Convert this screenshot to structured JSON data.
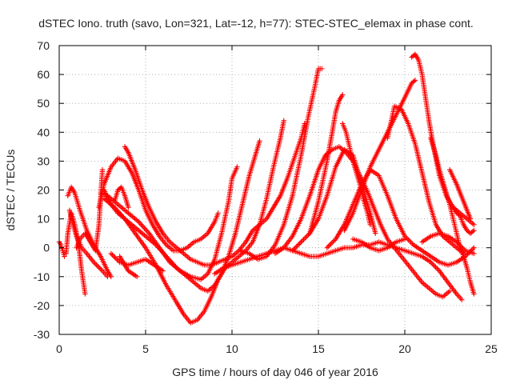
{
  "chart_data": {
    "type": "scatter",
    "title": "dSTEC Iono. truth (savo, Lon=321, Lat=-12, h=77): STEC-STEC_elemax in phase cont.",
    "xlabel": "GPS time / hours of day 046 of year 2016",
    "ylabel": "dSTEC  / TECUs",
    "xlim": [
      0,
      25
    ],
    "ylim": [
      -30,
      70
    ],
    "xticks": [
      0,
      5,
      10,
      15,
      20,
      25
    ],
    "yticks": [
      -30,
      -20,
      -10,
      0,
      10,
      20,
      30,
      40,
      50,
      60,
      70
    ],
    "grid": true,
    "marker": "+",
    "color": "#ff0000",
    "series": [
      {
        "x": [
          0.0,
          0.1,
          0.2,
          0.3
        ],
        "y": [
          2,
          1,
          -1,
          -3
        ]
      },
      {
        "x": [
          0.4,
          0.5,
          0.7,
          0.9,
          1.1,
          1.3,
          1.5
        ],
        "y": [
          -2,
          5,
          12,
          8,
          2,
          -8,
          -16
        ]
      },
      {
        "x": [
          0.5,
          0.7,
          0.9,
          1.2,
          1.6,
          2.0,
          2.4,
          2.8,
          3.0
        ],
        "y": [
          18,
          21,
          19,
          13,
          6,
          1,
          -3,
          -8,
          -10
        ]
      },
      {
        "x": [
          0.6,
          0.8,
          1.0,
          1.3,
          1.6,
          2.0,
          2.5,
          2.8
        ],
        "y": [
          13,
          8,
          4,
          0,
          -2,
          -5,
          -8,
          -10
        ]
      },
      {
        "x": [
          1.0,
          1.2,
          1.5,
          1.8,
          2.1,
          2.3,
          2.5
        ],
        "y": [
          0,
          3,
          5,
          2,
          -1,
          8,
          27
        ]
      },
      {
        "x": [
          2.3,
          2.6,
          3.0,
          3.4,
          3.8,
          4.2,
          4.6,
          5.0,
          5.4,
          5.8,
          6.2,
          6.6,
          7.0,
          7.4,
          7.8,
          8.2,
          8.6,
          9.0,
          9.2
        ],
        "y": [
          14,
          22,
          28,
          31,
          30,
          26,
          20,
          13,
          8,
          4,
          1,
          -1,
          -1,
          0,
          2,
          3,
          5,
          9,
          12
        ]
      },
      {
        "x": [
          2.4,
          2.8,
          3.2,
          3.6,
          4.0,
          4.6,
          5.2,
          5.8,
          6.4,
          7.0,
          7.6,
          8.2,
          8.6,
          9.0,
          9.4,
          9.8,
          10.0,
          10.3
        ],
        "y": [
          19,
          18,
          16,
          14,
          12,
          9,
          5,
          0,
          -5,
          -8,
          -10,
          -11,
          -9,
          -4,
          5,
          16,
          24,
          28
        ]
      },
      {
        "x": [
          2.6,
          3.0,
          3.4,
          3.8,
          4.4,
          5.0,
          5.6,
          6.2,
          6.8,
          7.4,
          7.8,
          8.2,
          8.6,
          9.0,
          9.4,
          9.8,
          10.2,
          10.6,
          11.0,
          11.4,
          11.6
        ],
        "y": [
          20,
          15,
          12,
          10,
          7,
          4,
          1,
          -3,
          -7,
          -10,
          -12,
          -14,
          -15,
          -13,
          -9,
          -3,
          5,
          15,
          25,
          33,
          37
        ]
      },
      {
        "x": [
          2.6,
          3.2,
          3.8,
          4.4,
          5.0,
          5.6,
          6.2,
          6.8,
          7.2,
          7.6,
          8.0,
          8.4,
          8.8,
          9.2,
          9.6,
          10.0,
          10.4,
          10.8,
          11.2,
          11.6,
          12.0,
          12.4,
          12.8,
          13.0
        ],
        "y": [
          17,
          14,
          10,
          5,
          0,
          -6,
          -13,
          -19,
          -23,
          -26,
          -25,
          -22,
          -17,
          -11,
          -7,
          -5,
          -3,
          -1,
          2,
          8,
          17,
          28,
          38,
          44
        ]
      },
      {
        "x": [
          3.8,
          4.0,
          4.4,
          4.8,
          5.2,
          5.6,
          6.0,
          6.4,
          6.8,
          7.2,
          7.6,
          8.0,
          8.4,
          8.8,
          9.2,
          9.6,
          10.0,
          10.4,
          10.8,
          11.2,
          11.6,
          12.0,
          12.4,
          12.8,
          13.2,
          13.6,
          14.0,
          14.2
        ],
        "y": [
          35,
          33,
          27,
          20,
          14,
          9,
          5,
          2,
          0,
          -2,
          -4,
          -5,
          -6,
          -6,
          -5,
          -4,
          -3,
          -1,
          2,
          6,
          8,
          10,
          14,
          18,
          24,
          31,
          38,
          43
        ]
      },
      {
        "x": [
          3.0,
          3.5,
          4.0,
          4.5,
          5.0,
          5.5,
          6.0
        ],
        "y": [
          -2,
          -5,
          -6,
          -5,
          -4,
          -6,
          -8
        ]
      },
      {
        "x": [
          3.2,
          3.4,
          3.6,
          3.8,
          4.0
        ],
        "y": [
          16,
          20,
          21,
          18,
          14
        ]
      },
      {
        "x": [
          3.5,
          4.0,
          4.5
        ],
        "y": [
          -3,
          -8,
          -10
        ]
      },
      {
        "x": [
          9.0,
          9.5,
          10.0,
          10.5,
          11.0,
          11.5,
          12.0,
          12.5,
          13.0,
          13.5,
          14.0,
          14.5,
          15.0,
          15.5,
          16.0,
          16.5,
          17.0,
          17.5,
          18.0,
          18.5,
          19.0,
          19.5,
          20.0,
          20.5,
          21.0,
          21.5,
          22.0,
          22.5,
          23.0,
          23.3
        ],
        "y": [
          -9,
          -7,
          -6,
          -5,
          -4,
          -3,
          -2,
          -1,
          0,
          -1,
          -2,
          -3,
          -3,
          -2,
          -1,
          0,
          0,
          1,
          1,
          2,
          1,
          0,
          -1,
          -2,
          -3,
          -5,
          -8,
          -12,
          -16,
          -18
        ]
      },
      {
        "x": [
          10.5,
          11.0,
          11.5,
          12.0,
          12.5,
          13.0,
          13.5,
          14.0,
          14.4,
          14.8,
          15.0,
          15.2
        ],
        "y": [
          -1,
          -2,
          -4,
          -3,
          1,
          8,
          18,
          32,
          45,
          56,
          62,
          62
        ]
      },
      {
        "x": [
          12.5,
          13.0,
          13.5,
          14.0,
          14.5,
          15.0,
          15.4,
          15.8,
          16.2,
          16.6,
          17.0,
          17.4,
          17.8,
          18.2,
          18.6,
          19.0,
          19.4,
          19.8,
          20.2,
          20.6,
          21.0,
          21.4,
          21.8,
          22.2,
          22.6
        ],
        "y": [
          -2,
          0,
          4,
          10,
          18,
          27,
          32,
          34,
          35,
          33,
          30,
          25,
          20,
          14,
          8,
          3,
          0,
          -3,
          -6,
          -9,
          -12,
          -14,
          -16,
          -17,
          -15
        ]
      },
      {
        "x": [
          13.5,
          14.0,
          14.5,
          15.0,
          15.5,
          16.0,
          16.5,
          17.0,
          17.5,
          18.0,
          18.3
        ],
        "y": [
          -1,
          2,
          5,
          10,
          18,
          28,
          34,
          32,
          22,
          12,
          5
        ]
      },
      {
        "x": [
          14.5,
          15.0,
          15.5,
          15.8,
          16.0,
          16.2,
          16.4
        ],
        "y": [
          5,
          16,
          30,
          40,
          47,
          51,
          53
        ]
      },
      {
        "x": [
          15.5,
          16.0,
          16.5,
          17.0,
          17.5,
          18.0,
          18.5,
          19.0,
          19.5,
          20.0,
          20.5,
          21.0,
          21.5,
          22.0,
          22.5,
          23.0,
          23.5,
          24.0
        ],
        "y": [
          0,
          3,
          8,
          15,
          22,
          27,
          25,
          18,
          10,
          4,
          1,
          -1,
          -3,
          -5,
          -6,
          -5,
          -3,
          0
        ]
      },
      {
        "x": [
          16.4,
          16.6,
          16.8,
          17.0,
          17.2,
          17.4,
          17.6,
          17.8,
          18.0
        ],
        "y": [
          43,
          40,
          35,
          30,
          26,
          22,
          17,
          13,
          8
        ]
      },
      {
        "x": [
          16.5,
          17.0,
          17.5,
          18.0,
          18.5,
          19.0,
          19.5,
          20.0,
          20.4,
          20.6
        ],
        "y": [
          6,
          12,
          20,
          28,
          34,
          40,
          46,
          52,
          57,
          58
        ]
      },
      {
        "x": [
          17.0,
          17.5,
          18.0,
          18.5,
          19.0,
          19.5,
          20.0
        ],
        "y": [
          3,
          2,
          0,
          -1,
          0,
          2,
          3
        ]
      },
      {
        "x": [
          19.0,
          19.4,
          19.8,
          20.2,
          20.6,
          21.0,
          21.4,
          21.8,
          22.2,
          22.6,
          23.0,
          23.4
        ],
        "y": [
          38,
          49,
          48,
          43,
          36,
          26,
          16,
          8,
          4,
          2,
          0,
          -2
        ]
      },
      {
        "x": [
          20.4,
          20.6,
          20.8,
          21.0,
          21.2,
          21.4,
          21.6,
          21.8,
          22.0,
          22.4,
          22.8,
          23.2,
          23.6,
          24.0
        ],
        "y": [
          66,
          67,
          65,
          60,
          52,
          44,
          37,
          31,
          25,
          18,
          14,
          12,
          10,
          8
        ]
      },
      {
        "x": [
          21.0,
          21.5,
          22.0,
          22.5,
          23.0,
          23.5,
          24.0
        ],
        "y": [
          2,
          4,
          5,
          4,
          2,
          -1,
          -2
        ]
      },
      {
        "x": [
          21.5,
          21.8,
          22.0,
          22.2,
          22.4,
          22.6,
          22.8,
          23.0,
          23.2,
          23.4,
          23.6,
          23.8,
          24.0
        ],
        "y": [
          38,
          32,
          27,
          23,
          19,
          15,
          10,
          5,
          0,
          -3,
          -7,
          -12,
          -16
        ]
      },
      {
        "x": [
          22.8,
          23.0,
          23.2,
          23.4,
          23.6,
          23.8,
          24.0
        ],
        "y": [
          14,
          12,
          11,
          8,
          6,
          5,
          6
        ]
      },
      {
        "x": [
          22.6,
          23.0,
          23.4,
          23.8
        ],
        "y": [
          27,
          22,
          16,
          10
        ]
      }
    ]
  }
}
